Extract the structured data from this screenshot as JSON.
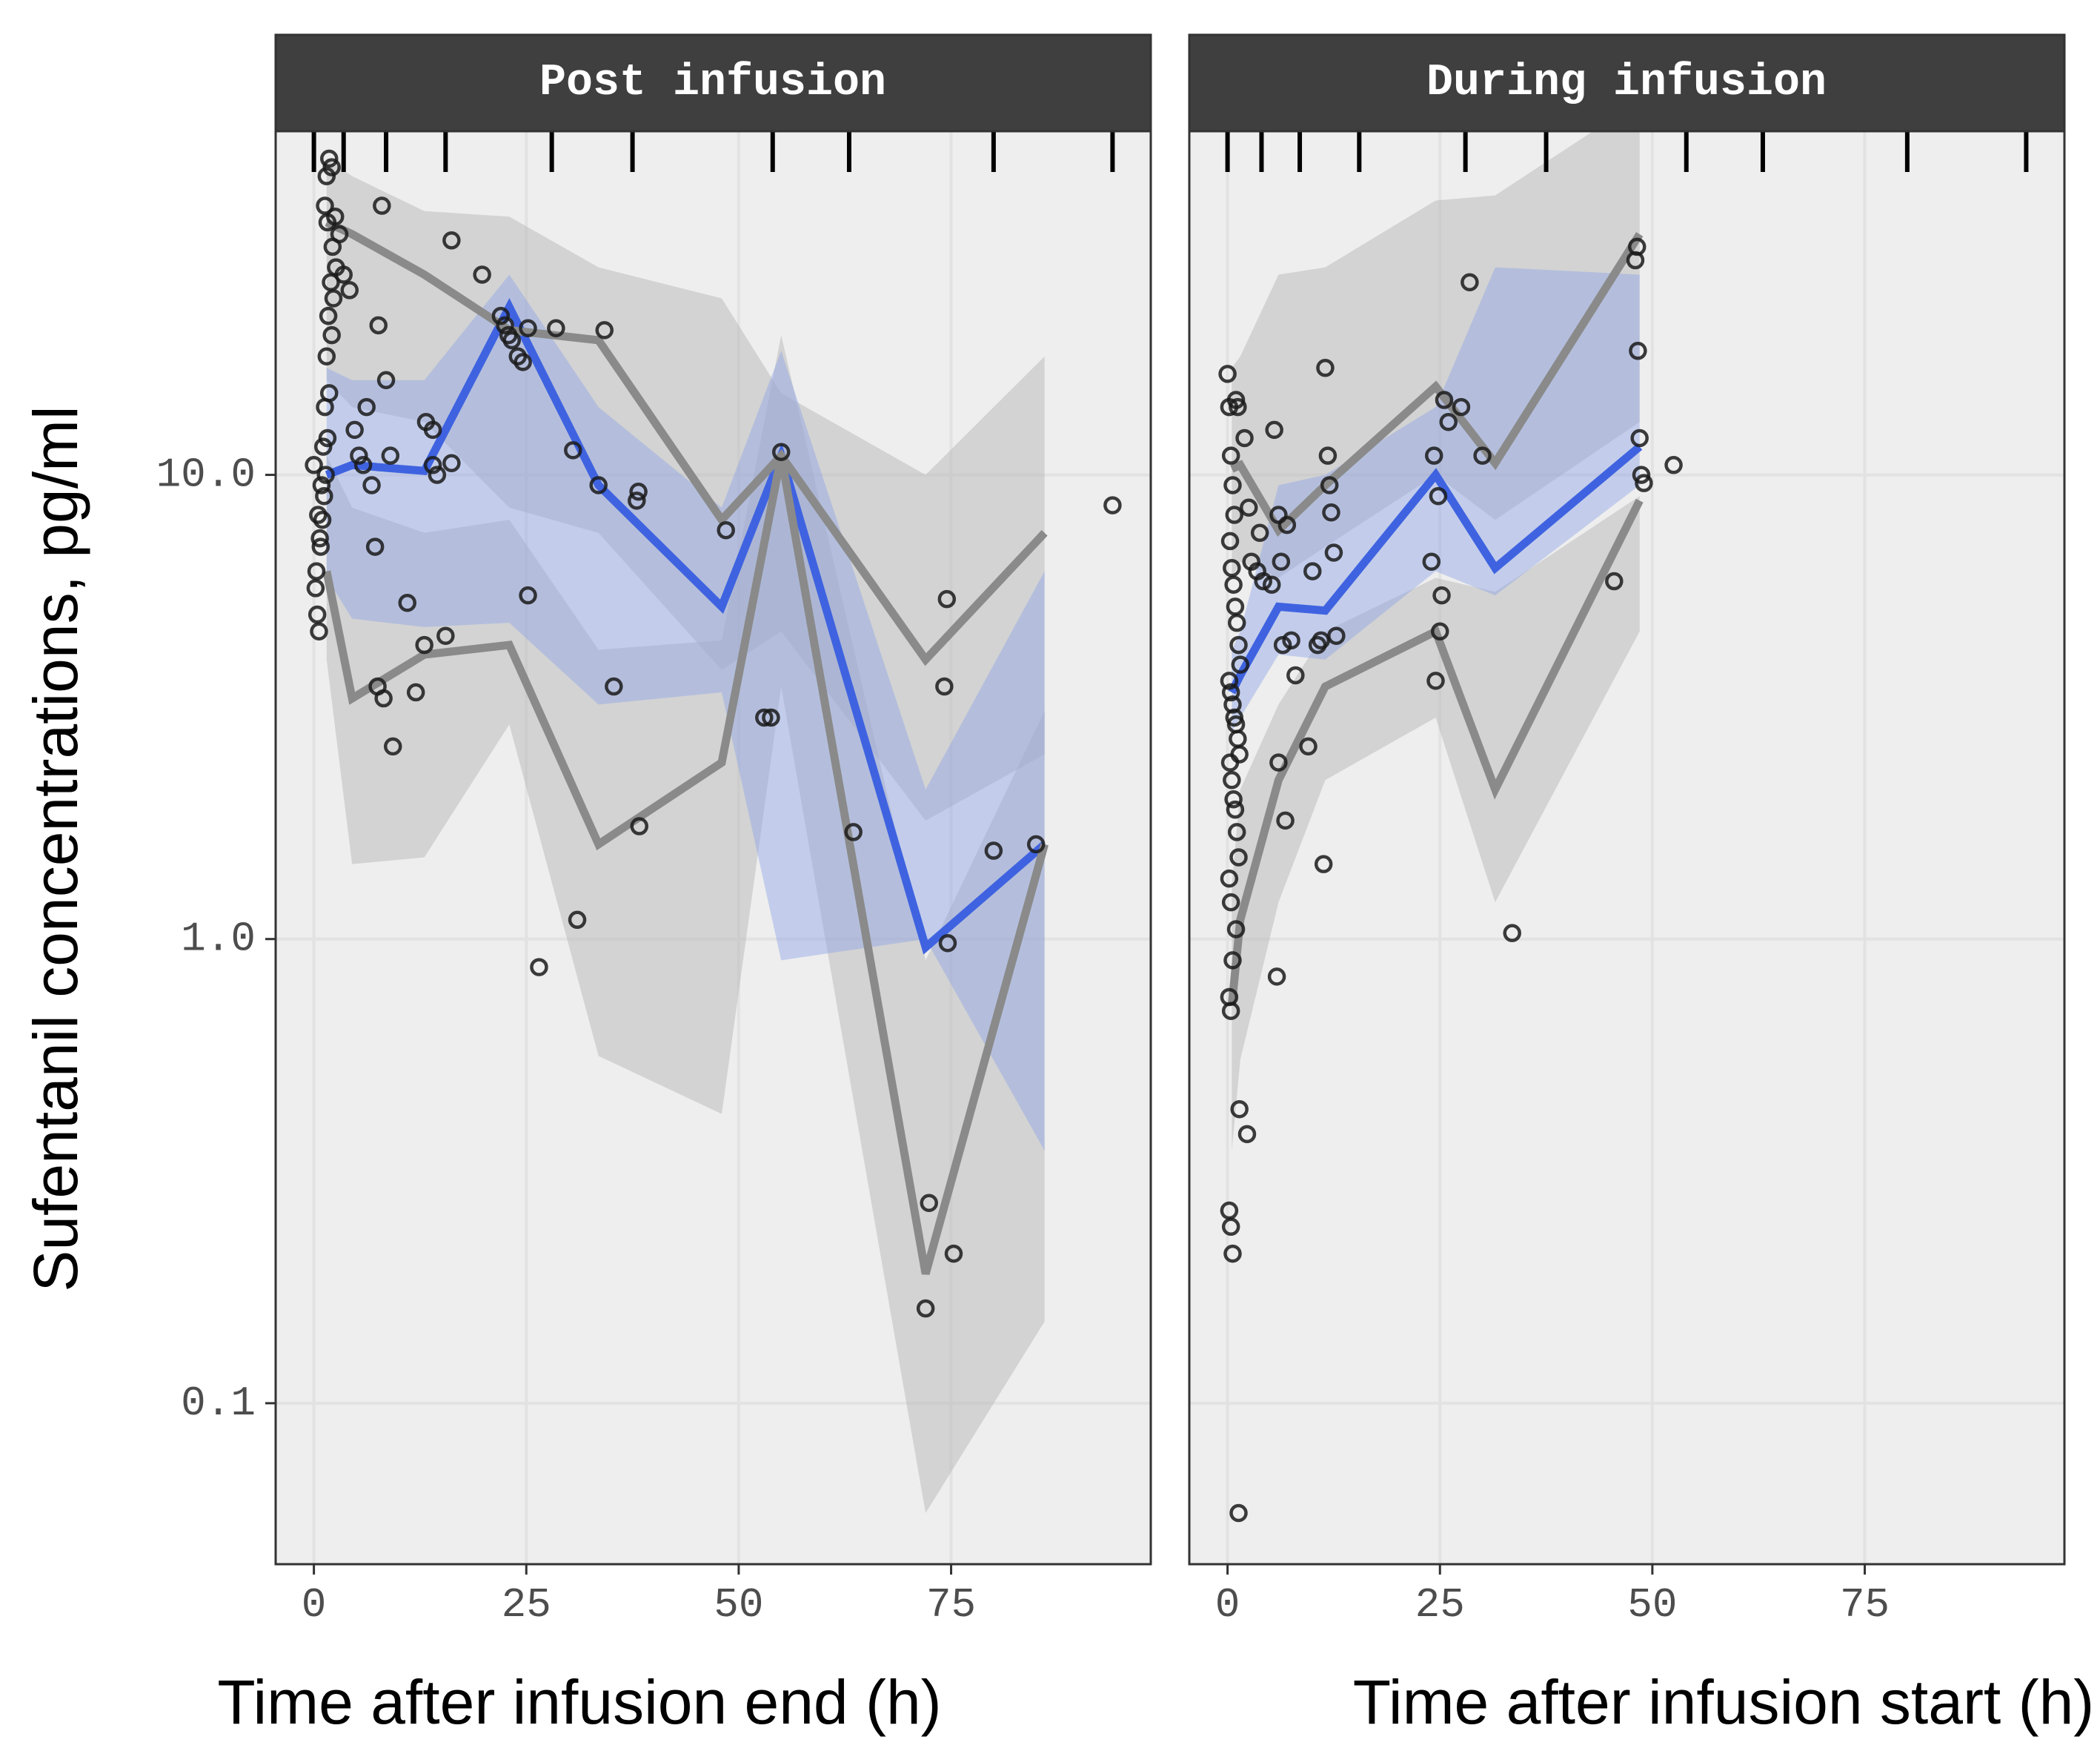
{
  "chart_data": {
    "type": "line",
    "ylabel": "Sufentanil concentrations, pg/ml",
    "y_scale": "log10",
    "ylim": [
      0.045,
      55
    ],
    "y_ticks": [
      0.1,
      1.0,
      10.0
    ],
    "y_tick_labels": [
      "0.1",
      "1.0",
      "10.0"
    ],
    "x_ticks": [
      0,
      25,
      50,
      75
    ],
    "x_tick_labels": [
      "0",
      "25",
      "50",
      "75"
    ],
    "xlim": [
      -4.5,
      98.5
    ],
    "colors": {
      "median_line": "#3f63e0",
      "median_band": "#8fa5e6",
      "percentile_line": "#8a8a8a",
      "percentile_band": "#b8b8b8",
      "points": "#1a1a1a",
      "strip_bg": "#3f3f3f",
      "panel_bg": "#eeeeee",
      "grid": "#e2e2e2"
    },
    "panels": [
      {
        "strip": "Post infusion",
        "xlabel": "Time after infusion end (h)",
        "rug": [
          0,
          3.5,
          8.5,
          15.5,
          28,
          37.5,
          54,
          63,
          80,
          94
        ],
        "series": [
          {
            "role": "median",
            "x": [
              1.5,
              4.5,
              13,
              23,
              33.5,
              48,
              55,
              72,
              86
            ],
            "y": [
              10,
              10.5,
              10.2,
              23,
              9.5,
              5.2,
              11,
              0.96,
              1.6
            ]
          },
          {
            "role": "upper",
            "x": [
              1.5,
              4.5,
              13,
              23,
              33.5,
              48,
              55,
              72,
              86
            ],
            "y": [
              35,
              33,
              27,
              20.5,
              19.5,
              8,
              11,
              4,
              7.5
            ]
          },
          {
            "role": "lower",
            "x": [
              1.5,
              4.5,
              13,
              23,
              33.5,
              48,
              55,
              72,
              86
            ],
            "y": [
              6.2,
              3.3,
              4.1,
              4.3,
              1.6,
              2.4,
              11,
              0.19,
              1.6
            ]
          }
        ],
        "bands": [
          {
            "role": "median_band",
            "x": [
              1.5,
              4.5,
              13,
              23,
              33.5,
              48,
              55,
              72,
              86
            ],
            "lo": [
              6,
              4.9,
              4.7,
              4.8,
              3.2,
              3.4,
              0.9,
              1.0,
              0.35
            ],
            "hi": [
              17,
              16,
              16,
              27,
              14,
              8.5,
              18.5,
              2.1,
              6.2
            ]
          },
          {
            "role": "upper_band",
            "x": [
              1.5,
              4.5,
              13,
              23,
              33.5,
              48,
              55,
              72,
              86
            ],
            "lo": [
              16,
              14,
              13,
              8.5,
              7.5,
              3.8,
              4.6,
              1.8,
              2.5
            ],
            "hi": [
              48,
              44,
              37,
              36,
              28,
              24,
              15,
              10,
              18
            ]
          },
          {
            "role": "lower_band",
            "x": [
              1.5,
              4.5,
              13,
              23,
              33.5,
              48,
              55,
              72,
              86
            ],
            "lo": [
              4,
              1.45,
              1.5,
              2.9,
              0.56,
              0.42,
              3.5,
              0.058,
              0.15
            ],
            "hi": [
              11,
              8.5,
              7.5,
              8,
              4.2,
              4.4,
              20,
              0.9,
              3.1
            ]
          }
        ],
        "points": [
          [
            0,
            10.5
          ],
          [
            0.3,
            6.2
          ],
          [
            0.5,
            8.2
          ],
          [
            0.7,
            7.3
          ],
          [
            0.9,
            9.5
          ],
          [
            1.1,
            11.5
          ],
          [
            1.3,
            14
          ],
          [
            1.5,
            18
          ],
          [
            1.7,
            22
          ],
          [
            2,
            26
          ],
          [
            2.2,
            31
          ],
          [
            2.5,
            36
          ],
          [
            0.2,
            5.7
          ],
          [
            0.4,
            5.0
          ],
          [
            0.6,
            4.6
          ],
          [
            0.8,
            7.0
          ],
          [
            1,
            8.0
          ],
          [
            1.2,
            9
          ],
          [
            1.4,
            10
          ],
          [
            1.6,
            12
          ],
          [
            1.8,
            15
          ],
          [
            2.1,
            20
          ],
          [
            2.3,
            24
          ],
          [
            2.6,
            28
          ],
          [
            1.5,
            44
          ],
          [
            1.8,
            48
          ],
          [
            2.1,
            46
          ],
          [
            1.3,
            38
          ],
          [
            1.6,
            35
          ],
          [
            3,
            33
          ],
          [
            3.5,
            27
          ],
          [
            4.2,
            25
          ],
          [
            4.8,
            12.5
          ],
          [
            5.3,
            11
          ],
          [
            5.8,
            10.5
          ],
          [
            6.2,
            14
          ],
          [
            6.8,
            9.5
          ],
          [
            7.2,
            7
          ],
          [
            7.6,
            21
          ],
          [
            8,
            38
          ],
          [
            8.5,
            16
          ],
          [
            9,
            11
          ],
          [
            11,
            5.3
          ],
          [
            12,
            3.4
          ],
          [
            13,
            4.3
          ],
          [
            14,
            10.5
          ],
          [
            14.5,
            10
          ],
          [
            15.5,
            4.5
          ],
          [
            16.2,
            10.6
          ],
          [
            7.5,
            3.5
          ],
          [
            8.2,
            3.3
          ],
          [
            9.3,
            2.6
          ],
          [
            13.2,
            13
          ],
          [
            14,
            12.5
          ],
          [
            16.2,
            32
          ],
          [
            19.8,
            27
          ],
          [
            22,
            22
          ],
          [
            22.5,
            21
          ],
          [
            22.9,
            20
          ],
          [
            23.3,
            19.5
          ],
          [
            24,
            18
          ],
          [
            24.6,
            17.5
          ],
          [
            25.2,
            20.7
          ],
          [
            28.5,
            20.7
          ],
          [
            30.5,
            11.3
          ],
          [
            33.5,
            9.5
          ],
          [
            34.2,
            20.5
          ],
          [
            35.3,
            3.5
          ],
          [
            38,
            8.8
          ],
          [
            38.2,
            9.2
          ],
          [
            38.3,
            1.75
          ],
          [
            31,
            1.1
          ],
          [
            26.5,
            0.87
          ],
          [
            25.2,
            5.5
          ],
          [
            48.5,
            7.6
          ],
          [
            53,
            3
          ],
          [
            53.8,
            3
          ],
          [
            55,
            11.2
          ],
          [
            63.5,
            1.7
          ],
          [
            72,
            0.16
          ],
          [
            72.4,
            0.27
          ],
          [
            74.2,
            3.5
          ],
          [
            74.5,
            5.4
          ],
          [
            74.6,
            0.98
          ],
          [
            75.3,
            0.21
          ],
          [
            80,
            1.55
          ],
          [
            85,
            1.6
          ],
          [
            94,
            8.6
          ]
        ]
      },
      {
        "strip": "During infusion",
        "xlabel": "Time after infusion start (h)",
        "rug": [
          0,
          4,
          8.5,
          15.5,
          28,
          37.5,
          54,
          63,
          80,
          94
        ],
        "series": [
          {
            "role": "median",
            "x": [
              0.5,
              1.5,
              6,
              11.5,
              24.5,
              31.5,
              48.5
            ],
            "y": [
              3.4,
              3.7,
              5.2,
              5.1,
              10,
              6.3,
              11.5
            ]
          },
          {
            "role": "upper",
            "x": [
              0.5,
              1.5,
              6,
              11.5,
              24.5,
              31.5,
              48.5
            ],
            "y": [
              10.3,
              10.5,
              7.6,
              9.5,
              15.5,
              10.6,
              33
            ]
          },
          {
            "role": "lower",
            "x": [
              0.5,
              1.5,
              6,
              11.5,
              24.5,
              31.5,
              48.5
            ],
            "y": [
              0.72,
              1.1,
              2.2,
              3.5,
              4.6,
              2.1,
              8.8
            ]
          }
        ],
        "bands": [
          {
            "role": "median_band",
            "x": [
              0.5,
              1.5,
              6,
              11.5,
              24.5,
              31.5,
              48.5
            ],
            "lo": [
              2.8,
              3.0,
              4.1,
              4.0,
              6.2,
              5.5,
              9.5
            ],
            "hi": [
              4.2,
              4.6,
              9.5,
              10,
              14,
              28,
              27
            ]
          },
          {
            "role": "upper_band",
            "x": [
              0.5,
              1.5,
              6,
              11.5,
              24.5,
              31.5,
              48.5
            ],
            "lo": [
              6,
              6.5,
              6,
              7,
              10,
              8,
              13
            ],
            "hi": [
              17,
              18,
              27,
              28,
              39,
              40,
              64
            ]
          },
          {
            "role": "lower_band",
            "x": [
              0.5,
              1.5,
              6,
              11.5,
              24.5,
              31.5,
              48.5
            ],
            "lo": [
              0.35,
              0.55,
              1.2,
              2.2,
              3,
              1.2,
              4.6
            ],
            "hi": [
              1.3,
              2.1,
              3.2,
              4.6,
              6,
              5.6,
              9
            ]
          }
        ],
        "points": [
          [
            0,
            16.5
          ],
          [
            0.2,
            14
          ],
          [
            0.4,
            11
          ],
          [
            0.6,
            9.5
          ],
          [
            0.8,
            8.2
          ],
          [
            1,
            14.5
          ],
          [
            1.2,
            14
          ],
          [
            0.3,
            7.2
          ],
          [
            0.5,
            6.3
          ],
          [
            0.7,
            5.8
          ],
          [
            0.9,
            5.2
          ],
          [
            1.1,
            4.8
          ],
          [
            1.3,
            4.3
          ],
          [
            1.5,
            3.9
          ],
          [
            0.2,
            3.6
          ],
          [
            0.4,
            3.4
          ],
          [
            0.6,
            3.2
          ],
          [
            0.8,
            3.0
          ],
          [
            1,
            2.9
          ],
          [
            1.2,
            2.7
          ],
          [
            1.4,
            2.5
          ],
          [
            0.3,
            2.4
          ],
          [
            0.5,
            2.2
          ],
          [
            0.7,
            2.0
          ],
          [
            0.9,
            1.9
          ],
          [
            1.1,
            1.7
          ],
          [
            1.3,
            1.5
          ],
          [
            0.2,
            1.35
          ],
          [
            0.4,
            1.2
          ],
          [
            1,
            1.05
          ],
          [
            0.6,
            0.9
          ],
          [
            0.2,
            0.75
          ],
          [
            0.4,
            0.7
          ],
          [
            1.4,
            0.43
          ],
          [
            2.3,
            0.38
          ],
          [
            0.2,
            0.26
          ],
          [
            0.4,
            0.24
          ],
          [
            0.6,
            0.21
          ],
          [
            1.3,
            0.058
          ],
          [
            2,
            12
          ],
          [
            2.5,
            8.5
          ],
          [
            2.8,
            6.5
          ],
          [
            3.5,
            6.2
          ],
          [
            3.8,
            7.5
          ],
          [
            4.2,
            5.9
          ],
          [
            5.2,
            5.8
          ],
          [
            5.5,
            12.5
          ],
          [
            6,
            8.2
          ],
          [
            6.3,
            6.5
          ],
          [
            7,
            7.8
          ],
          [
            7.5,
            4.4
          ],
          [
            8,
            3.7
          ],
          [
            6.5,
            4.3
          ],
          [
            6,
            2.4
          ],
          [
            6.8,
            1.8
          ],
          [
            5.8,
            0.83
          ],
          [
            10,
            6.2
          ],
          [
            10.6,
            4.3
          ],
          [
            11,
            4.4
          ],
          [
            11.5,
            17
          ],
          [
            11.8,
            11
          ],
          [
            12,
            9.5
          ],
          [
            12.2,
            8.3
          ],
          [
            12.5,
            6.8
          ],
          [
            11.3,
            1.45
          ],
          [
            9.5,
            2.6
          ],
          [
            12.8,
            4.5
          ],
          [
            24,
            6.5
          ],
          [
            24.3,
            11
          ],
          [
            24.8,
            9
          ],
          [
            25,
            4.6
          ],
          [
            24.5,
            3.6
          ],
          [
            25.2,
            5.5
          ],
          [
            25.5,
            14.5
          ],
          [
            26,
            13
          ],
          [
            27.5,
            14
          ],
          [
            28.5,
            26
          ],
          [
            30,
            11
          ],
          [
            33.5,
            1.03
          ],
          [
            45.5,
            5.9
          ],
          [
            48,
            29
          ],
          [
            48.2,
            31
          ],
          [
            48.3,
            18.5
          ],
          [
            48.5,
            12
          ],
          [
            48.7,
            10
          ],
          [
            49,
            9.6
          ],
          [
            52.5,
            10.5
          ]
        ]
      }
    ]
  }
}
